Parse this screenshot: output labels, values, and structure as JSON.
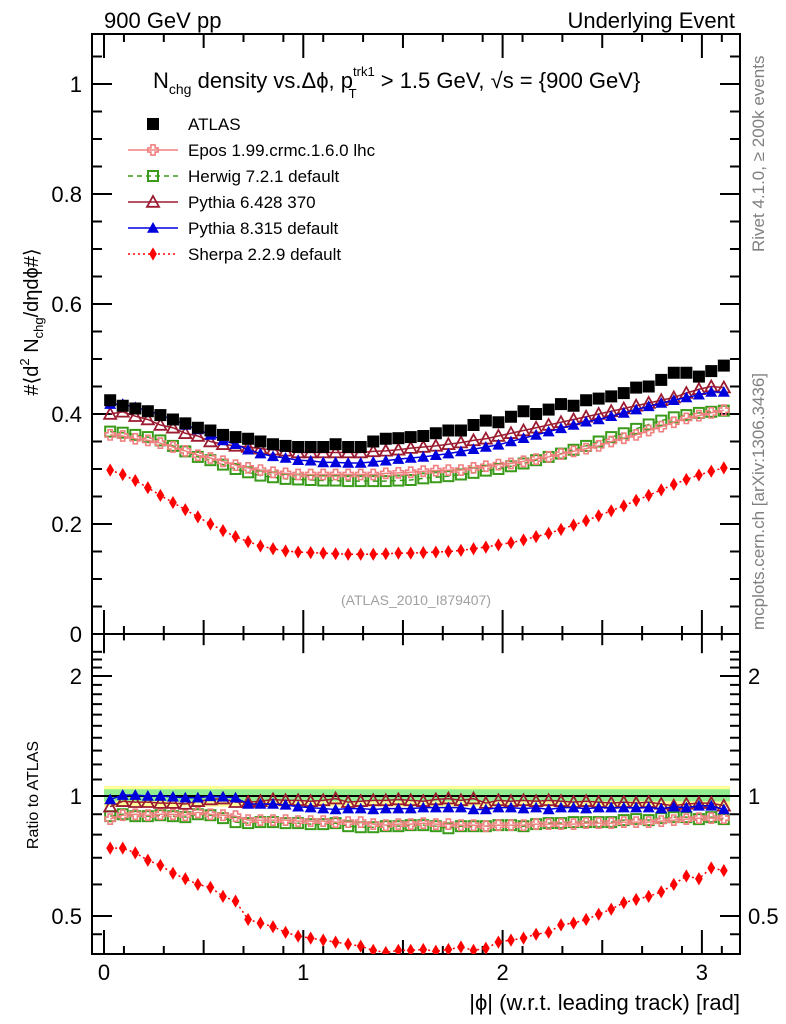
{
  "header": {
    "left": "900 GeV pp",
    "right": "Underlying Event"
  },
  "side_labels": {
    "rivet": "Rivet 4.1.0, ≥ 200k events",
    "mcplots": "mcplots.cern.ch [arXiv:1306.3436]"
  },
  "watermark": "(ATLAS_2010_I879407)",
  "chart_data": [
    {
      "type": "scatter",
      "panel": "main",
      "title_parts": {
        "main": "N",
        "sub": "chg",
        "mid": " density vs.Δϕ, p",
        "sup2": "trk1",
        "sub2": "T",
        "tail": " > 1.5 GeV, √s = {900 GeV}"
      },
      "ylabel": "#⟨d² N_chg/dηdϕ#⟩",
      "xlim": [
        0,
        3.2
      ],
      "ylim": [
        0,
        1.08
      ],
      "yticks": [
        0,
        0.2,
        0.4,
        0.6,
        0.8,
        1
      ],
      "ytick_labels": [
        "0",
        "0.2",
        "0.4",
        "0.6",
        "0.8",
        "1"
      ],
      "x": [
        0.031,
        0.094,
        0.157,
        0.22,
        0.283,
        0.346,
        0.408,
        0.471,
        0.534,
        0.597,
        0.66,
        0.723,
        0.785,
        0.848,
        0.911,
        0.974,
        1.037,
        1.1,
        1.162,
        1.225,
        1.288,
        1.351,
        1.414,
        1.477,
        1.539,
        1.602,
        1.665,
        1.728,
        1.791,
        1.854,
        1.916,
        1.979,
        2.042,
        2.105,
        2.168,
        2.231,
        2.293,
        2.356,
        2.419,
        2.482,
        2.545,
        2.608,
        2.67,
        2.733,
        2.796,
        2.859,
        2.922,
        2.985,
        3.047,
        3.11
      ],
      "legend_position": "top-left",
      "series": [
        {
          "name": "ATLAS",
          "color": "#000000",
          "marker": "square-filled",
          "line": "none",
          "values": [
            0.425,
            0.415,
            0.41,
            0.405,
            0.398,
            0.39,
            0.383,
            0.375,
            0.37,
            0.362,
            0.358,
            0.355,
            0.35,
            0.345,
            0.342,
            0.34,
            0.34,
            0.34,
            0.345,
            0.34,
            0.34,
            0.35,
            0.355,
            0.356,
            0.358,
            0.36,
            0.365,
            0.37,
            0.37,
            0.38,
            0.388,
            0.385,
            0.395,
            0.405,
            0.4,
            0.408,
            0.418,
            0.415,
            0.425,
            0.428,
            0.432,
            0.438,
            0.448,
            0.45,
            0.462,
            0.475,
            0.475,
            0.468,
            0.478,
            0.488
          ]
        },
        {
          "name": "Epos 1.99.crmc.1.6.0 lhc",
          "color": "#f08080",
          "marker": "cross-open",
          "line": "solid",
          "values": [
            0.362,
            0.36,
            0.355,
            0.352,
            0.347,
            0.34,
            0.333,
            0.325,
            0.32,
            0.314,
            0.307,
            0.302,
            0.298,
            0.294,
            0.292,
            0.29,
            0.29,
            0.29,
            0.29,
            0.29,
            0.29,
            0.29,
            0.292,
            0.293,
            0.294,
            0.296,
            0.297,
            0.298,
            0.298,
            0.302,
            0.305,
            0.308,
            0.31,
            0.314,
            0.318,
            0.322,
            0.327,
            0.332,
            0.337,
            0.342,
            0.35,
            0.356,
            0.362,
            0.37,
            0.377,
            0.385,
            0.392,
            0.397,
            0.402,
            0.407
          ]
        },
        {
          "name": "Herwig 7.2.1 default",
          "color": "#3a9a1a",
          "marker": "square-open",
          "line": "dashed",
          "values": [
            0.368,
            0.366,
            0.362,
            0.358,
            0.352,
            0.342,
            0.332,
            0.322,
            0.316,
            0.308,
            0.3,
            0.294,
            0.288,
            0.285,
            0.282,
            0.281,
            0.28,
            0.279,
            0.279,
            0.278,
            0.278,
            0.278,
            0.278,
            0.279,
            0.28,
            0.283,
            0.285,
            0.287,
            0.29,
            0.293,
            0.297,
            0.3,
            0.305,
            0.31,
            0.316,
            0.322,
            0.328,
            0.335,
            0.342,
            0.35,
            0.358,
            0.365,
            0.373,
            0.381,
            0.388,
            0.394,
            0.398,
            0.402,
            0.404,
            0.406
          ]
        },
        {
          "name": "Pythia 6.428 370",
          "color": "#9b1b30",
          "marker": "triangle-open",
          "line": "solid",
          "values": [
            0.4,
            0.404,
            0.396,
            0.39,
            0.38,
            0.375,
            0.365,
            0.36,
            0.35,
            0.345,
            0.342,
            0.34,
            0.337,
            0.335,
            0.333,
            0.33,
            0.33,
            0.33,
            0.33,
            0.33,
            0.33,
            0.332,
            0.333,
            0.335,
            0.338,
            0.34,
            0.342,
            0.345,
            0.348,
            0.352,
            0.355,
            0.36,
            0.365,
            0.37,
            0.375,
            0.38,
            0.385,
            0.39,
            0.395,
            0.4,
            0.405,
            0.41,
            0.415,
            0.42,
            0.425,
            0.43,
            0.438,
            0.445,
            0.45,
            0.448
          ]
        },
        {
          "name": "Pythia 8.315 default",
          "color": "#0000dd",
          "marker": "triangle-filled",
          "line": "solid",
          "values": [
            0.418,
            0.418,
            0.412,
            0.406,
            0.398,
            0.39,
            0.38,
            0.372,
            0.362,
            0.352,
            0.345,
            0.335,
            0.328,
            0.323,
            0.32,
            0.316,
            0.315,
            0.312,
            0.312,
            0.311,
            0.311,
            0.313,
            0.315,
            0.318,
            0.32,
            0.322,
            0.325,
            0.328,
            0.332,
            0.336,
            0.34,
            0.344,
            0.35,
            0.356,
            0.362,
            0.368,
            0.374,
            0.38,
            0.386,
            0.39,
            0.396,
            0.402,
            0.408,
            0.414,
            0.42,
            0.425,
            0.43,
            0.435,
            0.44,
            0.44
          ]
        },
        {
          "name": "Sherpa 2.2.9 default",
          "color": "#ff0000",
          "marker": "diamond-filled",
          "line": "dotted",
          "values": [
            0.298,
            0.29,
            0.279,
            0.266,
            0.252,
            0.239,
            0.226,
            0.213,
            0.2,
            0.188,
            0.177,
            0.168,
            0.16,
            0.155,
            0.151,
            0.149,
            0.148,
            0.147,
            0.146,
            0.145,
            0.145,
            0.145,
            0.146,
            0.147,
            0.147,
            0.148,
            0.149,
            0.15,
            0.152,
            0.155,
            0.158,
            0.162,
            0.166,
            0.171,
            0.177,
            0.183,
            0.19,
            0.198,
            0.206,
            0.215,
            0.224,
            0.233,
            0.243,
            0.252,
            0.262,
            0.272,
            0.281,
            0.289,
            0.296,
            0.302
          ]
        }
      ]
    },
    {
      "type": "scatter",
      "panel": "ratio",
      "ylabel": "Ratio to ATLAS",
      "xlabel": "|ϕ| (w.r.t. leading track) [rad]",
      "xlim": [
        0,
        3.2
      ],
      "ylim": [
        0.42,
        2.4
      ],
      "yscale": "log",
      "yticks": [
        0.5,
        1,
        2
      ],
      "ytick_labels": [
        "0.5",
        "1",
        "2"
      ],
      "xticks": [
        0,
        1,
        2,
        3
      ],
      "xtick_labels": [
        "0",
        "1",
        "2",
        "3"
      ],
      "reference_line": 1,
      "bands": [
        {
          "name": "total-uncertainty",
          "color": "#ffff99",
          "low": 0.94,
          "high": 1.06
        },
        {
          "name": "stat-uncertainty",
          "color": "#90ee90",
          "low": 0.97,
          "high": 1.04
        }
      ],
      "series": [
        {
          "name": "Epos 1.99.crmc.1.6.0 lhc",
          "values": [
            0.875,
            0.895,
            0.9,
            0.895,
            0.9,
            0.9,
            0.895,
            0.91,
            0.9,
            0.895,
            0.89,
            0.87,
            0.87,
            0.87,
            0.87,
            0.865,
            0.865,
            0.865,
            0.86,
            0.86,
            0.86,
            0.85,
            0.845,
            0.85,
            0.85,
            0.855,
            0.85,
            0.85,
            0.845,
            0.845,
            0.84,
            0.845,
            0.845,
            0.845,
            0.85,
            0.85,
            0.85,
            0.85,
            0.855,
            0.855,
            0.855,
            0.86,
            0.86,
            0.86,
            0.865,
            0.87,
            0.875,
            0.88,
            0.88,
            0.88
          ]
        },
        {
          "name": "Herwig 7.2.1 default",
          "values": [
            0.89,
            0.9,
            0.89,
            0.89,
            0.895,
            0.89,
            0.885,
            0.9,
            0.895,
            0.88,
            0.86,
            0.855,
            0.86,
            0.86,
            0.855,
            0.855,
            0.85,
            0.85,
            0.855,
            0.84,
            0.835,
            0.835,
            0.84,
            0.84,
            0.845,
            0.845,
            0.84,
            0.83,
            0.84,
            0.84,
            0.84,
            0.845,
            0.845,
            0.84,
            0.85,
            0.855,
            0.855,
            0.86,
            0.86,
            0.86,
            0.86,
            0.87,
            0.875,
            0.87,
            0.88,
            0.885,
            0.885,
            0.875,
            0.885,
            0.875
          ]
        },
        {
          "name": "Pythia 6.428 370",
          "values": [
            0.94,
            0.97,
            0.965,
            0.965,
            0.96,
            0.96,
            0.955,
            0.97,
            0.98,
            0.985,
            0.965,
            0.965,
            0.97,
            0.98,
            0.975,
            0.975,
            0.97,
            0.975,
            0.985,
            0.965,
            0.97,
            0.975,
            0.975,
            0.98,
            0.975,
            0.97,
            0.98,
            0.985,
            0.975,
            0.985,
            0.96,
            0.975,
            0.97,
            0.975,
            0.97,
            0.975,
            0.97,
            0.965,
            0.97,
            0.965,
            0.96,
            0.965,
            0.96,
            0.965,
            0.955,
            0.945,
            0.955,
            0.96,
            0.96,
            0.945
          ]
        },
        {
          "name": "Pythia 8.315 default",
          "values": [
            0.98,
            1.005,
            1.005,
            1.0,
            1.0,
            0.995,
            0.99,
            0.99,
            0.998,
            0.995,
            0.99,
            0.955,
            0.955,
            0.955,
            0.95,
            0.94,
            0.935,
            0.93,
            0.925,
            0.93,
            0.93,
            0.925,
            0.93,
            0.93,
            0.93,
            0.935,
            0.935,
            0.935,
            0.935,
            0.925,
            0.925,
            0.935,
            0.935,
            0.93,
            0.935,
            0.925,
            0.935,
            0.935,
            0.93,
            0.935,
            0.935,
            0.935,
            0.935,
            0.935,
            0.93,
            0.94,
            0.935,
            0.945,
            0.945,
            0.925
          ]
        },
        {
          "name": "Sherpa 2.2.9 default",
          "values": [
            0.74,
            0.74,
            0.72,
            0.69,
            0.67,
            0.64,
            0.62,
            0.6,
            0.59,
            0.56,
            0.545,
            0.49,
            0.48,
            0.47,
            0.455,
            0.445,
            0.44,
            0.435,
            0.43,
            0.425,
            0.42,
            0.41,
            0.405,
            0.41,
            0.41,
            0.412,
            0.408,
            0.412,
            0.418,
            0.41,
            0.415,
            0.43,
            0.435,
            0.44,
            0.45,
            0.455,
            0.475,
            0.48,
            0.49,
            0.505,
            0.52,
            0.54,
            0.55,
            0.56,
            0.575,
            0.6,
            0.63,
            0.62,
            0.66,
            0.65
          ]
        }
      ]
    }
  ]
}
